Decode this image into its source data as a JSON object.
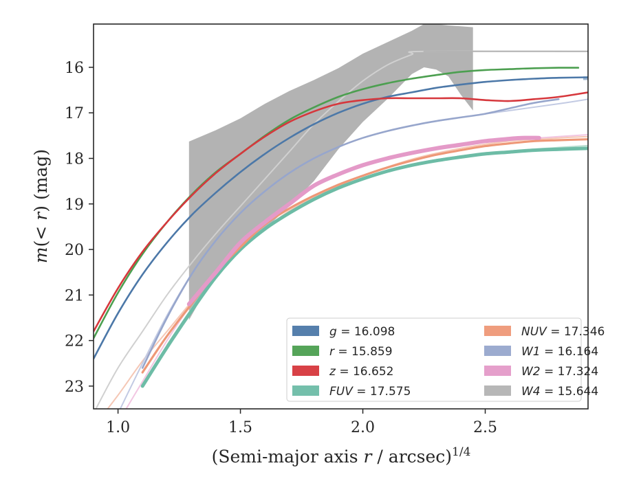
{
  "chart_data": {
    "type": "line",
    "title": "",
    "xlabel": "(Semi-major axis r / arcsec)",
    "xlabel_parts": [
      "(Semi-major axis ",
      "r",
      " / arcsec)",
      "1/4"
    ],
    "ylabel": "m(< r) (mag)",
    "ylabel_parts": [
      "m",
      "(< ",
      "r",
      ") (mag)"
    ],
    "xlim": [
      0.9,
      2.92
    ],
    "ylim": [
      23.5,
      15.05
    ],
    "y_inverted": true,
    "xticks": [
      "1.0",
      "1.5",
      "2.0",
      "2.5"
    ],
    "xtick_values": [
      1.0,
      1.5,
      2.0,
      2.5
    ],
    "yticks": [
      "16",
      "17",
      "18",
      "19",
      "20",
      "21",
      "22",
      "23"
    ],
    "ytick_values": [
      16,
      17,
      18,
      19,
      20,
      21,
      22,
      23
    ],
    "grid": false,
    "legend": {
      "placement": "lower-right",
      "columns": 2
    },
    "series": [
      {
        "name": "g",
        "label_value": "16.098",
        "color": "#4C78A8",
        "x": [
          0.9,
          1.0,
          1.1,
          1.2,
          1.3,
          1.4,
          1.5,
          1.6,
          1.7,
          1.8,
          1.9,
          2.0,
          2.1,
          2.2,
          2.3,
          2.4,
          2.5,
          2.6,
          2.7,
          2.8,
          2.92
        ],
        "y": [
          22.4,
          21.4,
          20.55,
          19.85,
          19.25,
          18.75,
          18.3,
          17.9,
          17.55,
          17.25,
          17.0,
          16.8,
          16.65,
          16.55,
          16.45,
          16.38,
          16.32,
          16.28,
          16.25,
          16.23,
          16.22
        ],
        "band_x": [
          2.9,
          2.92
        ],
        "band_lo": [
          16.2,
          16.2
        ],
        "band_hi": [
          16.28,
          16.28
        ]
      },
      {
        "name": "r",
        "label_value": "15.859",
        "color": "#4C9F50",
        "x": [
          0.9,
          1.0,
          1.1,
          1.2,
          1.3,
          1.4,
          1.5,
          1.6,
          1.7,
          1.8,
          1.9,
          2.0,
          2.1,
          2.2,
          2.3,
          2.4,
          2.5,
          2.6,
          2.7,
          2.8,
          2.88
        ],
        "y": [
          21.95,
          20.95,
          20.1,
          19.4,
          18.8,
          18.3,
          17.9,
          17.5,
          17.15,
          16.88,
          16.65,
          16.48,
          16.35,
          16.25,
          16.17,
          16.1,
          16.06,
          16.04,
          16.02,
          16.01,
          16.01
        ]
      },
      {
        "name": "z",
        "label_value": "16.652",
        "color": "#D6373C",
        "x": [
          0.9,
          1.0,
          1.1,
          1.2,
          1.3,
          1.4,
          1.5,
          1.6,
          1.7,
          1.8,
          1.9,
          2.0,
          2.1,
          2.2,
          2.3,
          2.4,
          2.5,
          2.6,
          2.7,
          2.8,
          2.92
        ],
        "y": [
          21.8,
          20.85,
          20.05,
          19.4,
          18.82,
          18.32,
          17.9,
          17.52,
          17.2,
          16.97,
          16.8,
          16.72,
          16.68,
          16.68,
          16.68,
          16.68,
          16.72,
          16.74,
          16.7,
          16.65,
          16.55
        ]
      },
      {
        "name": "FUV",
        "label_value": "17.575",
        "color": "#6DBCA6",
        "x": [
          1.1,
          1.2,
          1.3,
          1.4,
          1.5,
          1.6,
          1.7,
          1.8,
          1.9,
          2.0,
          2.1,
          2.2,
          2.3,
          2.4,
          2.5,
          2.6,
          2.7,
          2.8,
          2.92
        ],
        "y": [
          23.0,
          22.15,
          21.35,
          20.6,
          20.0,
          19.55,
          19.2,
          18.9,
          18.65,
          18.45,
          18.28,
          18.15,
          18.05,
          17.97,
          17.9,
          17.86,
          17.82,
          17.8,
          17.78
        ]
      },
      {
        "name": "NUV",
        "label_value": "17.346",
        "color": "#EE9877",
        "x": [
          1.1,
          1.2,
          1.3,
          1.4,
          1.5,
          1.6,
          1.7,
          1.8,
          1.9,
          2.0,
          2.1,
          2.2,
          2.3,
          2.4,
          2.5,
          2.6,
          2.7,
          2.8,
          2.92
        ],
        "y": [
          22.7,
          21.9,
          21.2,
          20.5,
          19.95,
          19.45,
          19.1,
          18.82,
          18.58,
          18.38,
          18.2,
          18.05,
          17.92,
          17.82,
          17.73,
          17.67,
          17.62,
          17.6,
          17.58
        ]
      },
      {
        "name": "W1",
        "label_value": "16.164",
        "color": "#97A6CC",
        "x": [
          1.1,
          1.2,
          1.3,
          1.4,
          1.5,
          1.6,
          1.7,
          1.8,
          1.9,
          2.0,
          2.1,
          2.2,
          2.3,
          2.4,
          2.5,
          2.6,
          2.7,
          2.8
        ],
        "y": [
          22.6,
          21.5,
          20.55,
          19.8,
          19.2,
          18.72,
          18.32,
          18.0,
          17.75,
          17.55,
          17.4,
          17.28,
          17.18,
          17.1,
          17.02,
          16.9,
          16.78,
          16.7
        ]
      },
      {
        "name": "W2",
        "label_value": "17.324",
        "color": "#E49AC8",
        "x": [
          1.29,
          1.4,
          1.5,
          1.6,
          1.7,
          1.8,
          1.9,
          2.0,
          2.1,
          2.2,
          2.3,
          2.4,
          2.5,
          2.6,
          2.65,
          2.72
        ],
        "y": [
          21.2,
          20.5,
          19.85,
          19.4,
          19.0,
          18.6,
          18.35,
          18.15,
          18.0,
          17.88,
          17.78,
          17.7,
          17.62,
          17.57,
          17.55,
          17.55
        ]
      },
      {
        "name": "W4",
        "label_value": "15.644",
        "color": "#B3B3B3",
        "band_x": [
          1.29,
          1.4,
          1.5,
          1.6,
          1.7,
          1.8,
          1.9,
          2.0,
          2.1,
          2.2,
          2.25,
          2.3,
          2.35,
          2.4,
          2.45
        ],
        "band_lo": [
          21.55,
          20.5,
          19.95,
          19.55,
          19.05,
          18.5,
          17.8,
          17.2,
          16.7,
          16.15,
          16.0,
          16.05,
          16.2,
          16.6,
          16.95
        ],
        "band_hi": [
          17.63,
          17.38,
          17.12,
          16.8,
          16.52,
          16.28,
          16.02,
          15.7,
          15.45,
          15.2,
          15.05,
          15.05,
          15.08,
          15.1,
          15.12
        ],
        "x": [
          2.25,
          2.92
        ],
        "y": [
          15.65,
          15.65
        ]
      }
    ],
    "faint_lines": [
      {
        "color": "#D0D0D0",
        "x": [
          0.9,
          1.0,
          1.1,
          1.2,
          1.3,
          1.4,
          1.5,
          1.6,
          1.7,
          1.8,
          1.9,
          2.0,
          2.1,
          2.2,
          2.25,
          2.92
        ],
        "y": [
          23.6,
          22.6,
          21.8,
          21.0,
          20.3,
          19.65,
          19.05,
          18.45,
          17.85,
          17.25,
          16.75,
          16.3,
          15.95,
          15.72,
          15.65,
          15.65
        ]
      },
      {
        "color": "#F5C7B5",
        "x": [
          0.9,
          1.0,
          1.1,
          1.2,
          1.3,
          1.4,
          1.5,
          1.6,
          1.7,
          1.8,
          1.9,
          2.0,
          2.2,
          2.4,
          2.6,
          2.8,
          2.92
        ],
        "y": [
          23.9,
          23.2,
          22.45,
          21.8,
          21.15,
          20.55,
          20.0,
          19.55,
          19.15,
          18.85,
          18.6,
          18.38,
          18.02,
          17.78,
          17.62,
          17.55,
          17.52
        ]
      },
      {
        "color": "#F2C6E2",
        "x": [
          1.0,
          1.1,
          1.2,
          1.3,
          1.4,
          1.5,
          1.6,
          1.7,
          1.8,
          1.9,
          2.0,
          2.2,
          2.4,
          2.6,
          2.8,
          2.92
        ],
        "y": [
          23.8,
          22.9,
          22.0,
          21.2,
          20.5,
          19.85,
          19.4,
          19.0,
          18.62,
          18.38,
          18.18,
          17.88,
          17.7,
          17.6,
          17.52,
          17.48
        ]
      },
      {
        "color": "#C2CAE3",
        "x": [
          1.0,
          1.1,
          1.2,
          1.3,
          1.4,
          1.5,
          1.6,
          1.7,
          1.8,
          1.9,
          2.0,
          2.2,
          2.4,
          2.6,
          2.8,
          2.92
        ],
        "y": [
          23.6,
          22.5,
          21.45,
          20.55,
          19.8,
          19.2,
          18.72,
          18.32,
          18.0,
          17.75,
          17.55,
          17.28,
          17.1,
          16.95,
          16.8,
          16.7
        ]
      },
      {
        "color": "#B5DDCF",
        "x": [
          1.2,
          1.3,
          1.4,
          1.5,
          1.6,
          1.8,
          2.0,
          2.2,
          2.4,
          2.6,
          2.8,
          2.92
        ],
        "y": [
          22.1,
          21.3,
          20.58,
          19.98,
          19.53,
          18.88,
          18.43,
          18.13,
          17.95,
          17.84,
          17.76,
          17.72
        ]
      }
    ]
  }
}
